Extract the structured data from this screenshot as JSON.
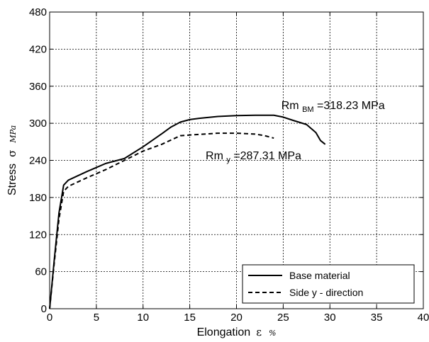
{
  "chart_data": {
    "type": "line",
    "xlabel": "Elongation",
    "xlabel_symbol": "ε",
    "xlabel_unit": "%",
    "ylabel": "Stress",
    "ylabel_symbol": "σ",
    "ylabel_unit": "MPa",
    "xlim": [
      0,
      40
    ],
    "ylim": [
      0,
      480
    ],
    "xticks": [
      0,
      5,
      10,
      15,
      20,
      25,
      30,
      35,
      40
    ],
    "yticks": [
      0,
      60,
      120,
      180,
      240,
      300,
      360,
      420,
      480
    ],
    "grid": true,
    "legend_position": "bottom-right",
    "series": [
      {
        "name": "Base material",
        "line_style": "solid",
        "color": "#000000",
        "x": [
          0,
          0.5,
          1,
          1.5,
          2,
          4,
          6,
          8,
          10,
          12,
          13,
          14,
          15,
          16,
          18,
          20,
          22,
          24,
          25,
          26,
          27.5,
          28.5,
          29,
          29.5
        ],
        "y": [
          0,
          80,
          155,
          200,
          208,
          222,
          235,
          243,
          262,
          283,
          294,
          302,
          306,
          308,
          311,
          312.5,
          313,
          313,
          310,
          305,
          298,
          285,
          272,
          266
        ]
      },
      {
        "name": "Side y - direction",
        "line_style": "dashed",
        "color": "#000000",
        "x": [
          0,
          0.5,
          1,
          1.5,
          2,
          4,
          6,
          8,
          10,
          12,
          13,
          14,
          16,
          18,
          20,
          22,
          23,
          24
        ],
        "y": [
          0,
          75,
          145,
          190,
          198,
          212,
          225,
          240,
          255,
          266,
          273,
          280,
          282,
          284,
          284,
          282.5,
          280,
          276
        ]
      }
    ],
    "annotations": [
      {
        "prefix": "Rm",
        "sub": "BM",
        "suffix": "=318.23 MPa",
        "x": 24.8,
        "y": 323
      },
      {
        "prefix": "Rm",
        "sub": "y",
        "suffix": "=287.31 MPa",
        "x": 16.7,
        "y": 242
      }
    ]
  }
}
